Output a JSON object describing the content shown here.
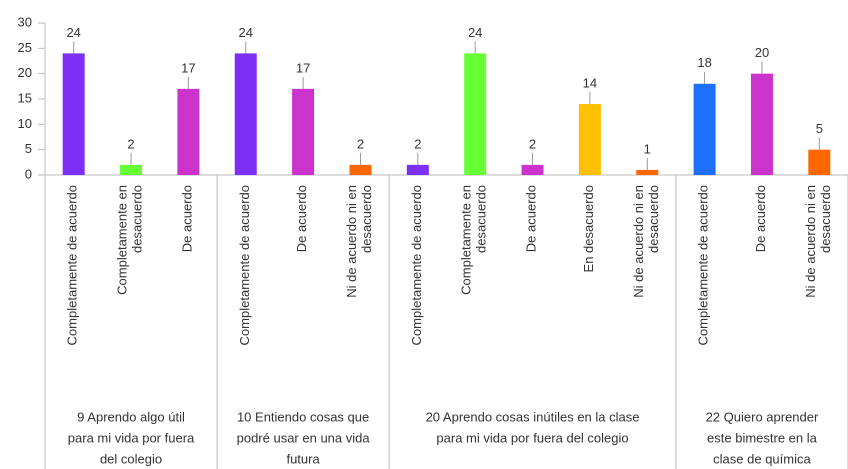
{
  "chart_data": {
    "type": "bar",
    "categories": [
      [
        "Completamente de acuerdo"
      ],
      [
        "Completamente en",
        "desacuerdo"
      ],
      [
        "De acuerdo"
      ],
      [
        "Completamente de acuerdo"
      ],
      [
        "De acuerdo"
      ],
      [
        "Ni de acuerdo ni en",
        "desacuerdo"
      ],
      [
        "Completamente de acuerdo"
      ],
      [
        "Completamente en",
        "desacuerdo"
      ],
      [
        "De acuerdo"
      ],
      [
        "En desacuerdo"
      ],
      [
        "Ni de acuerdo ni en",
        "desacuerdo"
      ],
      [
        "Completamente de acuerdo"
      ],
      [
        "De acuerdo"
      ],
      [
        "Ni de acuerdo ni en",
        "desacuerdo"
      ]
    ],
    "values": [
      24,
      2,
      17,
      24,
      17,
      2,
      2,
      24,
      2,
      14,
      1,
      18,
      20,
      5
    ],
    "colors": [
      "#7b2ff7",
      "#66ff33",
      "#cc33cc",
      "#7b2ff7",
      "#cc33cc",
      "#ff6600",
      "#7b2ff7",
      "#66ff33",
      "#cc33cc",
      "#ffc000",
      "#ff6600",
      "#1f6fff",
      "#cc33cc",
      "#ff6600"
    ],
    "groups": [
      {
        "label": [
          "9 Aprendo algo útil",
          "para mi vida por fuera",
          "del colegio"
        ],
        "count": 3
      },
      {
        "label": [
          "10 Entiendo cosas que",
          "podré usar en una vida",
          "futura"
        ],
        "count": 3
      },
      {
        "label": [
          "20 Aprendo cosas inútiles en la clase",
          "para mi vida por fuera del colegio"
        ],
        "count": 5
      },
      {
        "label": [
          "22 Quiero aprender",
          "este bimestre en la",
          "clase de química"
        ],
        "count": 3
      }
    ],
    "ylim": [
      0,
      30
    ],
    "yticks": [
      0,
      5,
      10,
      15,
      20,
      25,
      30
    ]
  }
}
